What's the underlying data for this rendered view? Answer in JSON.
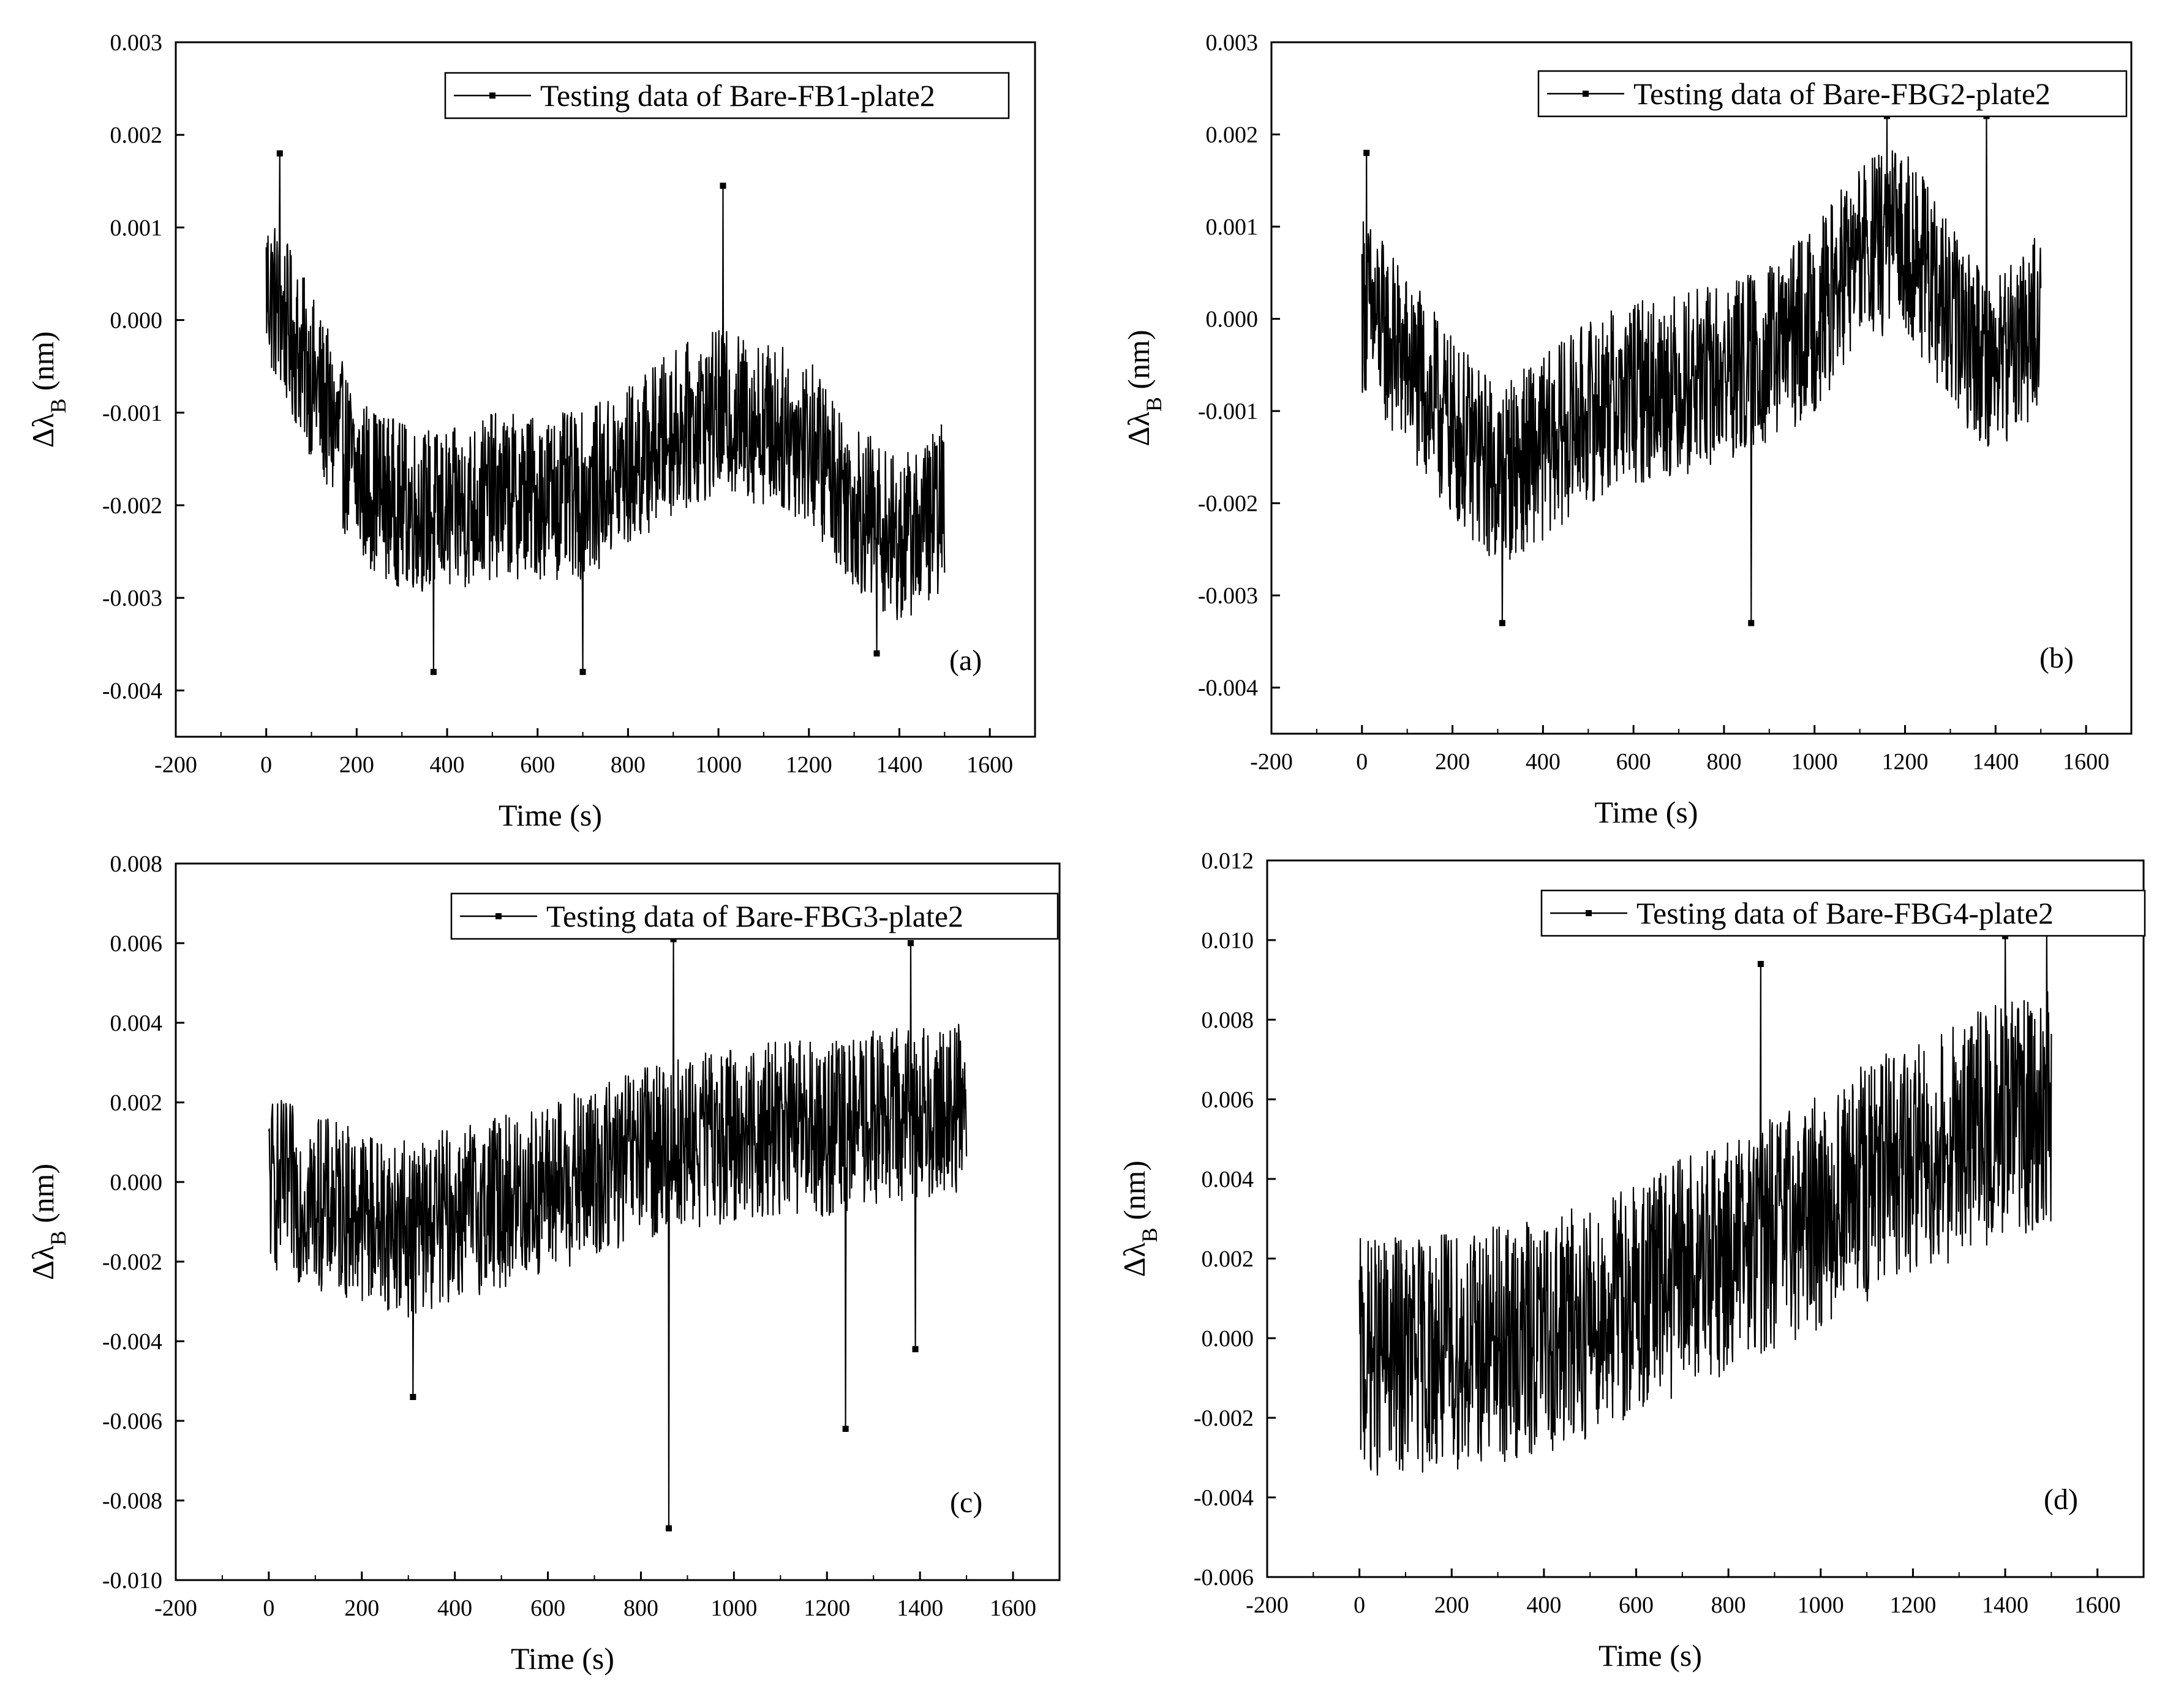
{
  "chart_data": [
    {
      "type": "line",
      "panel_label": "(a)",
      "legend": "Testing data of Bare-FB1-plate2",
      "xlabel": "Time (s)",
      "ylabel": "Δλ",
      "ylabel_sub": "B",
      "ylabel_unit": " (nm)",
      "xlim": [
        -200,
        1700
      ],
      "ylim": [
        -0.0045,
        0.003
      ],
      "xticks": [
        -200,
        0,
        200,
        400,
        600,
        800,
        1000,
        1200,
        1400,
        1600
      ],
      "xtick_labels": [
        "-200",
        "0",
        "200",
        "400",
        "600",
        "800",
        "1000",
        "1200",
        "1400",
        "1600"
      ],
      "yticks": [
        -0.004,
        -0.003,
        -0.002,
        -0.001,
        0,
        0.001,
        0.002,
        0.003
      ],
      "ytick_labels": [
        "-0.004",
        "-0.003",
        "-0.002",
        "-0.001",
        "0.000",
        "0.001",
        "0.002",
        "0.003"
      ],
      "series": [
        {
          "name": "Testing data of Bare-FB1-plate2",
          "color": "#000000",
          "trend_x": [
            0,
            100,
            200,
            300,
            400,
            500,
            600,
            700,
            800,
            900,
            1000,
            1100,
            1200,
            1300,
            1400,
            1500
          ],
          "trend_y": [
            0.0004,
            -0.0006,
            -0.0017,
            -0.002,
            -0.0021,
            -0.0019,
            -0.0019,
            -0.0019,
            -0.0016,
            -0.0012,
            -0.001,
            -0.0011,
            -0.0013,
            -0.002,
            -0.0024,
            -0.002
          ],
          "noise_amplitude": 0.0009,
          "spikes": [
            [
              30,
              0.0018
            ],
            [
              370,
              -0.0038
            ],
            [
              700,
              -0.0038
            ],
            [
              1010,
              0.00145
            ],
            [
              1350,
              -0.0036
            ]
          ]
        }
      ]
    },
    {
      "type": "line",
      "panel_label": "(b)",
      "legend": "Testing data of Bare-FBG2-plate2",
      "xlabel": "Time (s)",
      "ylabel": "Δλ",
      "ylabel_sub": "B",
      "ylabel_unit": " (nm)",
      "xlim": [
        -200,
        1700
      ],
      "ylim": [
        -0.0045,
        0.003
      ],
      "xticks": [
        -200,
        0,
        200,
        400,
        600,
        800,
        1000,
        1200,
        1400,
        1600
      ],
      "xtick_labels": [
        "-200",
        "0",
        "200",
        "400",
        "600",
        "800",
        "1000",
        "1200",
        "1400",
        "1600"
      ],
      "yticks": [
        -0.004,
        -0.003,
        -0.002,
        -0.001,
        0,
        0.001,
        0.002,
        0.003
      ],
      "ytick_labels": [
        "-0.004",
        "-0.003",
        "-0.002",
        "-0.001",
        "0.000",
        "0.001",
        "0.002",
        "0.003"
      ],
      "series": [
        {
          "name": "Testing data of Bare-FBG2-plate2",
          "color": "#000000",
          "trend_x": [
            0,
            100,
            200,
            300,
            400,
            500,
            600,
            700,
            800,
            900,
            1000,
            1100,
            1200,
            1300,
            1400,
            1500
          ],
          "trend_y": [
            0.0002,
            -0.0005,
            -0.0012,
            -0.0017,
            -0.0014,
            -0.001,
            -0.0008,
            -0.0007,
            -0.0006,
            -0.0004,
            0.0,
            0.0007,
            0.0009,
            0.0,
            -0.0005,
            0.0
          ],
          "noise_amplitude": 0.001,
          "spikes": [
            [
              10,
              0.0018
            ],
            [
              310,
              -0.0033
            ],
            [
              860,
              -0.0033
            ],
            [
              1160,
              0.0022
            ],
            [
              1380,
              0.0022
            ]
          ]
        }
      ]
    },
    {
      "type": "line",
      "panel_label": "(c)",
      "legend": "Testing data of Bare-FBG3-plate2",
      "xlabel": "Time (s)",
      "ylabel": "Δλ",
      "ylabel_sub": "B",
      "ylabel_unit": " (nm)",
      "xlim": [
        -200,
        1700
      ],
      "ylim": [
        -0.01,
        0.008
      ],
      "xticks": [
        -200,
        0,
        200,
        400,
        600,
        800,
        1000,
        1200,
        1400,
        1600
      ],
      "xtick_labels": [
        "-200",
        "0",
        "200",
        "400",
        "600",
        "800",
        "1000",
        "1200",
        "1400",
        "1600"
      ],
      "yticks": [
        -0.01,
        -0.008,
        -0.006,
        -0.004,
        -0.002,
        0,
        0.002,
        0.004,
        0.006,
        0.008
      ],
      "ytick_labels": [
        "-0.010",
        "-0.008",
        "-0.006",
        "-0.004",
        "-0.002",
        "0.000",
        "0.002",
        "0.004",
        "0.006",
        "0.008"
      ],
      "series": [
        {
          "name": "Testing data of Bare-FBG3-plate2",
          "color": "#000000",
          "trend_x": [
            0,
            100,
            200,
            300,
            400,
            500,
            600,
            700,
            800,
            900,
            1000,
            1100,
            1200,
            1300,
            1400,
            1500
          ],
          "trend_y": [
            0.0,
            -0.0005,
            -0.0008,
            -0.0012,
            -0.0008,
            -0.0005,
            -0.0002,
            0.0002,
            0.0007,
            0.001,
            0.0012,
            0.0014,
            0.0013,
            0.0016,
            0.0018,
            0.0018
          ],
          "noise_amplitude": 0.0022,
          "spikes": [
            [
              310,
              -0.0054
            ],
            [
              860,
              -0.0087
            ],
            [
              870,
              0.0061
            ],
            [
              1240,
              -0.0062
            ],
            [
              1380,
              0.006
            ],
            [
              1390,
              -0.0042
            ]
          ]
        }
      ]
    },
    {
      "type": "line",
      "panel_label": "(d)",
      "legend": "Testing data of Bare-FBG4-plate2",
      "xlabel": "Time (s)",
      "ylabel": "Δλ",
      "ylabel_sub": "B",
      "ylabel_unit": " (nm)",
      "xlim": [
        -200,
        1700
      ],
      "ylim": [
        -0.006,
        0.012
      ],
      "xticks": [
        -200,
        0,
        200,
        400,
        600,
        800,
        1000,
        1200,
        1400,
        1600
      ],
      "xtick_labels": [
        "-200",
        "0",
        "200",
        "400",
        "600",
        "800",
        "1000",
        "1200",
        "1400",
        "1600"
      ],
      "yticks": [
        -0.006,
        -0.004,
        -0.002,
        0,
        0.002,
        0.004,
        0.006,
        0.008,
        0.01,
        0.012
      ],
      "ytick_labels": [
        "-0.006",
        "-0.004",
        "-0.002",
        "0.000",
        "0.002",
        "0.004",
        "0.006",
        "0.008",
        "0.010",
        "0.012"
      ],
      "series": [
        {
          "name": "Testing data of Bare-FBG4-plate2",
          "color": "#000000",
          "trend_x": [
            0,
            100,
            200,
            300,
            400,
            500,
            600,
            700,
            800,
            900,
            1000,
            1100,
            1200,
            1300,
            1400,
            1500
          ],
          "trend_y": [
            -0.0005,
            -0.0004,
            -0.0003,
            -0.0002,
            0.0,
            0.0005,
            0.001,
            0.0016,
            0.0021,
            0.0027,
            0.0032,
            0.0039,
            0.0045,
            0.005,
            0.0055,
            0.0058
          ],
          "noise_amplitude": 0.003,
          "spikes": [
            [
              870,
              0.0094
            ],
            [
              1400,
              0.0101
            ],
            [
              1490,
              0.0104
            ]
          ]
        }
      ]
    }
  ]
}
